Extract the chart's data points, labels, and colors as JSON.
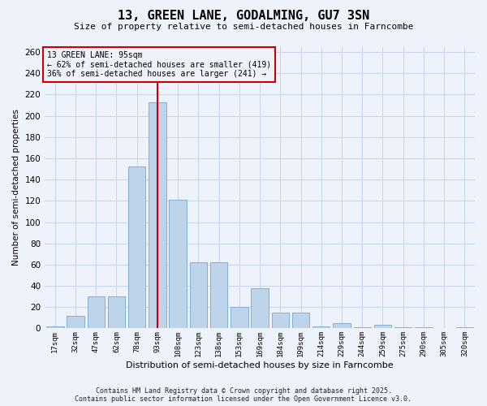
{
  "title": "13, GREEN LANE, GODALMING, GU7 3SN",
  "subtitle": "Size of property relative to semi-detached houses in Farncombe",
  "xlabel": "Distribution of semi-detached houses by size in Farncombe",
  "ylabel": "Number of semi-detached properties",
  "categories": [
    "17sqm",
    "32sqm",
    "47sqm",
    "62sqm",
    "78sqm",
    "93sqm",
    "108sqm",
    "123sqm",
    "138sqm",
    "153sqm",
    "169sqm",
    "184sqm",
    "199sqm",
    "214sqm",
    "229sqm",
    "244sqm",
    "259sqm",
    "275sqm",
    "290sqm",
    "305sqm",
    "320sqm"
  ],
  "values": [
    2,
    12,
    30,
    30,
    152,
    213,
    121,
    62,
    62,
    20,
    38,
    15,
    15,
    2,
    5,
    1,
    3,
    1,
    1,
    0,
    1
  ],
  "bar_color": "#bdd4eb",
  "bar_edge_color": "#85aed4",
  "vline_index": 5,
  "marker_label": "13 GREEN LANE: 95sqm",
  "smaller_pct": "62%",
  "smaller_count": 419,
  "larger_pct": "36%",
  "larger_count": 241,
  "vline_color": "#cc0000",
  "bg_color": "#eef2fb",
  "grid_color": "#c5d5ee",
  "footer_line1": "Contains HM Land Registry data © Crown copyright and database right 2025.",
  "footer_line2": "Contains public sector information licensed under the Open Government Licence v3.0.",
  "ylim": [
    0,
    265
  ],
  "yticks": [
    0,
    20,
    40,
    60,
    80,
    100,
    120,
    140,
    160,
    180,
    200,
    220,
    240,
    260
  ]
}
